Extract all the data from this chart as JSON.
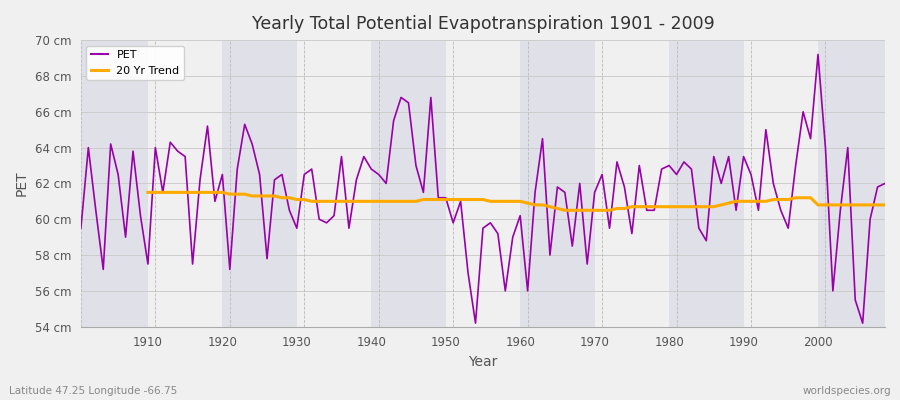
{
  "title": "Yearly Total Potential Evapotranspiration 1901 - 2009",
  "xlabel": "Year",
  "ylabel": "PET",
  "subtitle_left": "Latitude 47.25 Longitude -66.75",
  "subtitle_right": "worldspecies.org",
  "pet_color": "#9900aa",
  "trend_color": "#ffaa00",
  "bg_color": "#f0f0f0",
  "plot_bg_color": "#f0f0f0",
  "band_color1": "#f0f0f0",
  "band_color2": "#e0e0e8",
  "ylim": [
    54,
    70
  ],
  "yticks": [
    54,
    56,
    58,
    60,
    62,
    64,
    66,
    68,
    70
  ],
  "ytick_labels": [
    "54 cm",
    "56 cm",
    "58 cm",
    "60 cm",
    "62 cm",
    "64 cm",
    "66 cm",
    "68 cm",
    "70 cm"
  ],
  "years": [
    1901,
    1902,
    1903,
    1904,
    1905,
    1906,
    1907,
    1908,
    1909,
    1910,
    1911,
    1912,
    1913,
    1914,
    1915,
    1916,
    1917,
    1918,
    1919,
    1920,
    1921,
    1922,
    1923,
    1924,
    1925,
    1926,
    1927,
    1928,
    1929,
    1930,
    1931,
    1932,
    1933,
    1934,
    1935,
    1936,
    1937,
    1938,
    1939,
    1940,
    1941,
    1942,
    1943,
    1944,
    1945,
    1946,
    1947,
    1948,
    1949,
    1950,
    1951,
    1952,
    1953,
    1954,
    1955,
    1956,
    1957,
    1958,
    1959,
    1960,
    1961,
    1962,
    1963,
    1964,
    1965,
    1966,
    1967,
    1968,
    1969,
    1970,
    1971,
    1972,
    1973,
    1974,
    1975,
    1976,
    1977,
    1978,
    1979,
    1980,
    1981,
    1982,
    1983,
    1984,
    1985,
    1986,
    1987,
    1988,
    1989,
    1990,
    1991,
    1992,
    1993,
    1994,
    1995,
    1996,
    1997,
    1998,
    1999,
    2000,
    2001,
    2002,
    2003,
    2004,
    2005,
    2006,
    2007,
    2008,
    2009
  ],
  "pet_values": [
    59.5,
    64.0,
    60.5,
    57.2,
    64.2,
    62.5,
    59.0,
    63.8,
    60.2,
    57.5,
    64.0,
    61.5,
    64.3,
    63.8,
    63.5,
    57.5,
    62.2,
    65.2,
    61.0,
    62.5,
    57.2,
    62.8,
    65.3,
    64.2,
    62.5,
    57.8,
    62.2,
    62.5,
    60.5,
    59.5,
    62.5,
    62.8,
    60.0,
    59.8,
    60.2,
    63.5,
    59.5,
    62.2,
    63.5,
    62.8,
    62.5,
    62.0,
    65.5,
    66.8,
    66.5,
    63.0,
    61.5,
    66.8,
    61.2,
    61.2,
    59.8,
    61.0,
    57.0,
    54.2,
    59.5,
    59.8,
    59.2,
    56.0,
    59.0,
    60.2,
    56.0,
    61.5,
    64.5,
    58.0,
    61.8,
    61.5,
    58.5,
    62.0,
    57.5,
    61.5,
    62.5,
    59.5,
    63.2,
    61.8,
    59.2,
    63.0,
    60.5,
    60.5,
    62.8,
    63.0,
    62.5,
    63.2,
    62.8,
    59.5,
    58.8,
    63.5,
    62.0,
    63.5,
    60.5,
    63.5,
    62.5,
    60.5,
    65.0,
    62.0,
    60.5,
    59.5,
    63.0,
    66.0,
    64.5,
    69.2,
    64.0,
    56.0,
    60.5,
    64.0,
    55.5,
    54.2,
    60.0,
    61.8,
    62.0
  ],
  "trend_years": [
    1910,
    1911,
    1912,
    1913,
    1914,
    1915,
    1916,
    1917,
    1918,
    1919,
    1920,
    1921,
    1922,
    1923,
    1924,
    1925,
    1926,
    1927,
    1928,
    1929,
    1930,
    1931,
    1932,
    1933,
    1934,
    1935,
    1936,
    1937,
    1938,
    1939,
    1940,
    1941,
    1942,
    1943,
    1944,
    1945,
    1946,
    1947,
    1948,
    1949,
    1950,
    1951,
    1952,
    1953,
    1954,
    1955,
    1956,
    1957,
    1958,
    1959,
    1960,
    1961,
    1962,
    1963,
    1964,
    1965,
    1966,
    1967,
    1968,
    1969,
    1970,
    1971,
    1972,
    1973,
    1974,
    1975,
    1976,
    1977,
    1978,
    1979,
    1980,
    1981,
    1982,
    1983,
    1984,
    1985,
    1986,
    1987,
    1988,
    1989,
    1990,
    1991,
    1992,
    1993,
    1994,
    1995,
    1996,
    1997,
    1998,
    1999,
    2000,
    2001,
    2002,
    2003,
    2004,
    2005,
    2006,
    2007,
    2008,
    2009
  ],
  "trend_values": [
    61.5,
    61.5,
    61.5,
    61.5,
    61.5,
    61.5,
    61.5,
    61.5,
    61.5,
    61.5,
    61.5,
    61.4,
    61.4,
    61.4,
    61.3,
    61.3,
    61.3,
    61.3,
    61.2,
    61.2,
    61.1,
    61.1,
    61.0,
    61.0,
    61.0,
    61.0,
    61.0,
    61.0,
    61.0,
    61.0,
    61.0,
    61.0,
    61.0,
    61.0,
    61.0,
    61.0,
    61.0,
    61.1,
    61.1,
    61.1,
    61.1,
    61.1,
    61.1,
    61.1,
    61.1,
    61.1,
    61.0,
    61.0,
    61.0,
    61.0,
    61.0,
    60.9,
    60.8,
    60.8,
    60.7,
    60.6,
    60.5,
    60.5,
    60.5,
    60.5,
    60.5,
    60.5,
    60.5,
    60.6,
    60.6,
    60.7,
    60.7,
    60.7,
    60.7,
    60.7,
    60.7,
    60.7,
    60.7,
    60.7,
    60.7,
    60.7,
    60.7,
    60.8,
    60.9,
    61.0,
    61.0,
    61.0,
    61.0,
    61.0,
    61.1,
    61.1,
    61.1,
    61.2,
    61.2,
    61.2,
    60.8,
    60.8,
    60.8,
    60.8,
    60.8,
    60.8,
    60.8,
    60.8,
    60.8,
    60.8
  ],
  "decade_bands": [
    1901,
    1910,
    1920,
    1930,
    1940,
    1950,
    1960,
    1970,
    1980,
    1990,
    2000,
    2009
  ]
}
